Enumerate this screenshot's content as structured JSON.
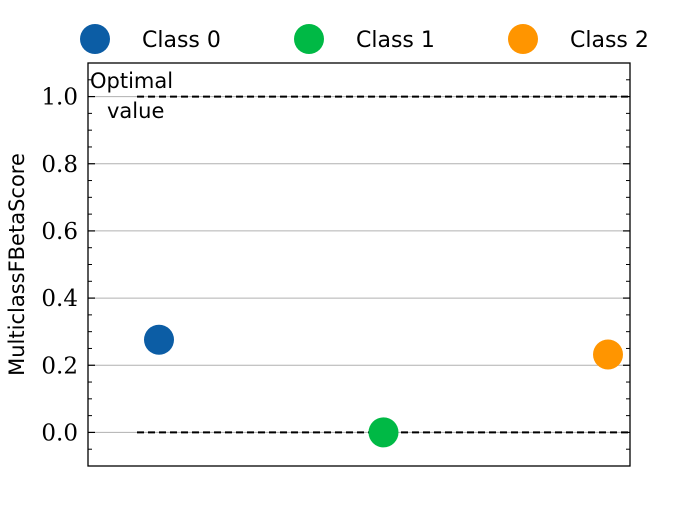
{
  "chart_data": {
    "type": "scatter",
    "ylabel": "MulticlassFBetaScore",
    "ylim": [
      -0.1,
      1.1
    ],
    "yticks": [
      0.0,
      0.2,
      0.4,
      0.6,
      0.8,
      1.0
    ],
    "ytick_labels": [
      "0.0",
      "0.2",
      "0.4",
      "0.6",
      "0.8",
      "1.0"
    ],
    "grid": "horizontal",
    "legend_position": "top",
    "series": [
      {
        "name": "Class 0",
        "x": 0,
        "y": 0.276,
        "color": "#0c5da5"
      },
      {
        "name": "Class 1",
        "x": 1,
        "y": 0.0,
        "color": "#00b945"
      },
      {
        "name": "Class 2",
        "x": 2,
        "y": 0.232,
        "color": "#ff9500"
      }
    ],
    "reference_lines": [
      {
        "y": 1.0,
        "style": "dashed"
      },
      {
        "y": 0.0,
        "style": "dashed"
      }
    ],
    "annotation": {
      "line1": "Optimal",
      "line2": "value"
    }
  }
}
